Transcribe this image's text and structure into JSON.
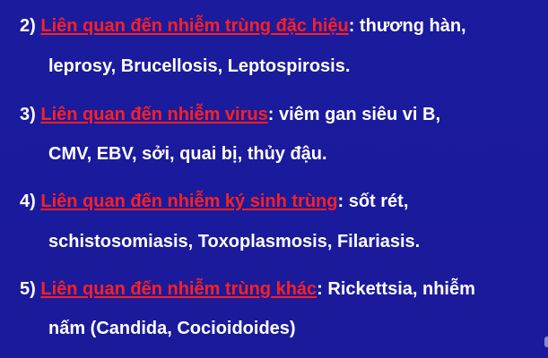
{
  "items": [
    {
      "number": "2)",
      "heading": "Liên quan đến nhiễm trùng đặc hiệu",
      "suffix": ": thương hàn,",
      "continuation": "leprosy, Brucellosis, Leptospirosis."
    },
    {
      "number": "3)",
      "heading": "Liên quan đến nhiễm virus",
      "suffix": ": viêm gan siêu vi B,",
      "continuation": "CMV, EBV, sởi, quai bị, thủy đậu."
    },
    {
      "number": "4)",
      "heading": "Liên quan đến nhiễm ký sinh trùng",
      "suffix": ": sốt rét,",
      "continuation": "schistosomiasis, Toxoplasmosis, Filariasis."
    },
    {
      "number": "5)",
      "heading": "Liên quan đến nhiễm trùng khác",
      "suffix": ": Rickettsia, nhiễm",
      "continuation": "nấm (Candida, Cocioidoides)"
    }
  ]
}
